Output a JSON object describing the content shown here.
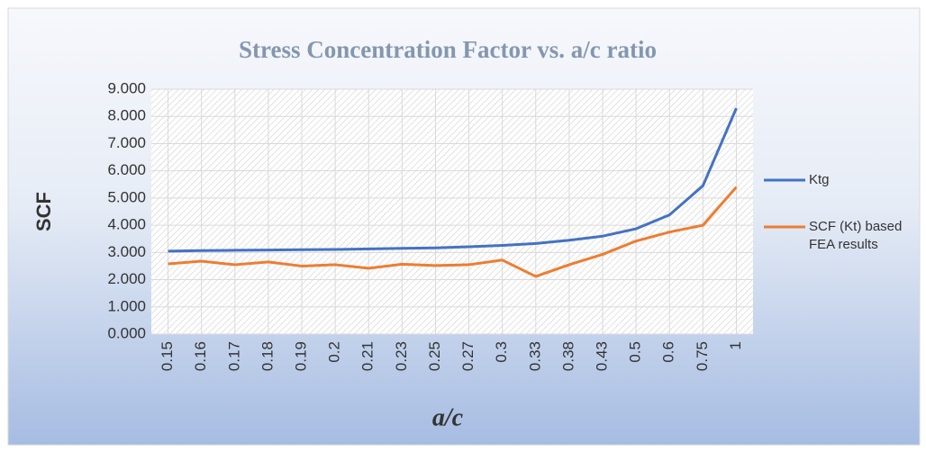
{
  "chart_data": {
    "type": "line",
    "title": "Stress Concentration Factor vs. a/c ratio",
    "x_label": "a/c",
    "y_label": "SCF",
    "categories": [
      "0.15",
      "0.16",
      "0.17",
      "0.18",
      "0.19",
      "0.2",
      "0.21",
      "0.23",
      "0.25",
      "0.27",
      "0.3",
      "0.33",
      "0.38",
      "0.43",
      "0.5",
      "0.6",
      "0.75",
      "1"
    ],
    "series": [
      {
        "name": "Ktg",
        "color": "#4472c4",
        "values": [
          3.05,
          3.07,
          3.08,
          3.09,
          3.1,
          3.11,
          3.13,
          3.15,
          3.17,
          3.21,
          3.26,
          3.33,
          3.45,
          3.6,
          3.87,
          4.38,
          5.45,
          8.3
        ]
      },
      {
        "name": "SCF (Kt) based FEA results",
        "color": "#ed7d31",
        "values": [
          2.58,
          2.68,
          2.55,
          2.65,
          2.5,
          2.55,
          2.42,
          2.57,
          2.52,
          2.55,
          2.72,
          2.12,
          2.55,
          2.93,
          3.42,
          3.75,
          4.0,
          5.4
        ]
      }
    ],
    "ylim": [
      0,
      9
    ],
    "yticks": [
      {
        "value": 0,
        "label": "0.000"
      },
      {
        "value": 1,
        "label": "1.000"
      },
      {
        "value": 2,
        "label": "2.000"
      },
      {
        "value": 3,
        "label": "3.000"
      },
      {
        "value": 4,
        "label": "4.000"
      },
      {
        "value": 5,
        "label": "5.000"
      },
      {
        "value": 6,
        "label": "6.000"
      },
      {
        "value": 7,
        "label": "7.000"
      },
      {
        "value": 8,
        "label": "8.000"
      },
      {
        "value": 9,
        "label": "9.000"
      }
    ],
    "grid": true,
    "legend": "right"
  }
}
